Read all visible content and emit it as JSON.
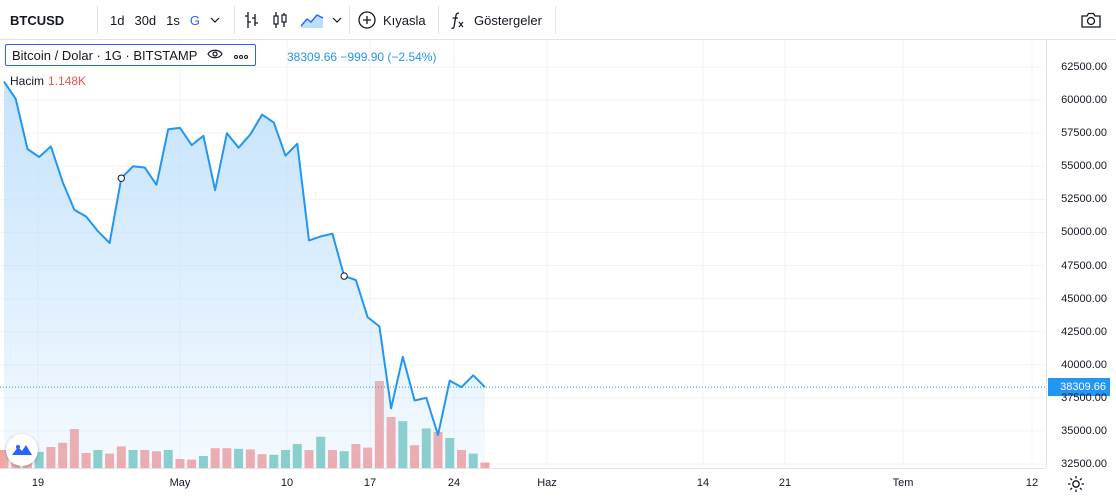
{
  "toolbar": {
    "symbol": "BTCUSD",
    "intervals": [
      "1d",
      "30d",
      "1s",
      "G"
    ],
    "active_interval": "G",
    "compare_label": "Kıyasla",
    "indicators_label": "Göstergeler",
    "icons": [
      "chevron-down-icon",
      "bar-style-icon",
      "candle-style-icon",
      "area-style-icon",
      "add-circle-icon",
      "function-icon",
      "camera-icon"
    ]
  },
  "legend": {
    "title": "Bitcoin / Dolar · 1G · BITSTAMP",
    "price_change": "38309.66 −999.90 (−2.54%)",
    "volume_label": "Hacim",
    "volume_value": "1.148K"
  },
  "current_price_label": "38309.66",
  "colors": {
    "line": "#2196f3",
    "area_top": "#bbdefb",
    "up_volume": "#80cbc4",
    "down_volume": "#f4a3a3",
    "price_label_bg": "#2196f3"
  },
  "chart_data": {
    "type": "area",
    "x_ticks": [
      "19",
      "May",
      "10",
      "17",
      "24",
      "Haz",
      "14",
      "21",
      "Tem",
      "12"
    ],
    "y_ticks": [
      "62500.00",
      "60000.00",
      "57500.00",
      "55000.00",
      "52500.00",
      "50000.00",
      "47500.00",
      "45000.00",
      "42500.00",
      "40000.00",
      "37500.00",
      "35000.00",
      "32500.00"
    ],
    "ylim": [
      32500,
      63750
    ],
    "values": [
      61400,
      60100,
      56300,
      55700,
      56500,
      53800,
      51700,
      51200,
      50100,
      49200,
      54100,
      55000,
      54900,
      53600,
      57800,
      57900,
      56600,
      57300,
      53200,
      57500,
      56400,
      57400,
      58900,
      58300,
      55800,
      56700,
      49400,
      49700,
      49900,
      46700,
      46400,
      43600,
      42900,
      36700,
      40600,
      37300,
      37500,
      34700,
      38800,
      38300,
      39200,
      38309.66
    ],
    "volume_up": [
      false,
      false,
      false,
      true,
      false,
      false,
      false,
      false,
      true,
      false,
      false,
      true,
      false,
      false,
      true,
      false,
      false,
      true,
      false,
      false,
      true,
      false,
      false,
      true,
      true,
      true,
      false,
      true,
      false,
      true,
      false,
      false,
      false,
      false,
      true,
      false,
      true,
      false,
      true,
      false,
      true,
      false
    ],
    "volume": [
      0.3,
      0.52,
      0.32,
      0.27,
      0.35,
      0.42,
      0.65,
      0.25,
      0.3,
      0.24,
      0.36,
      0.3,
      0.3,
      0.28,
      0.3,
      0.15,
      0.14,
      0.2,
      0.33,
      0.33,
      0.32,
      0.31,
      0.23,
      0.22,
      0.3,
      0.4,
      0.3,
      0.52,
      0.3,
      0.28,
      0.4,
      0.34,
      1.45,
      0.85,
      0.78,
      0.38,
      0.66,
      0.6,
      0.5,
      0.3,
      0.24,
      0.09
    ],
    "grid": true,
    "legend": "top-left"
  }
}
